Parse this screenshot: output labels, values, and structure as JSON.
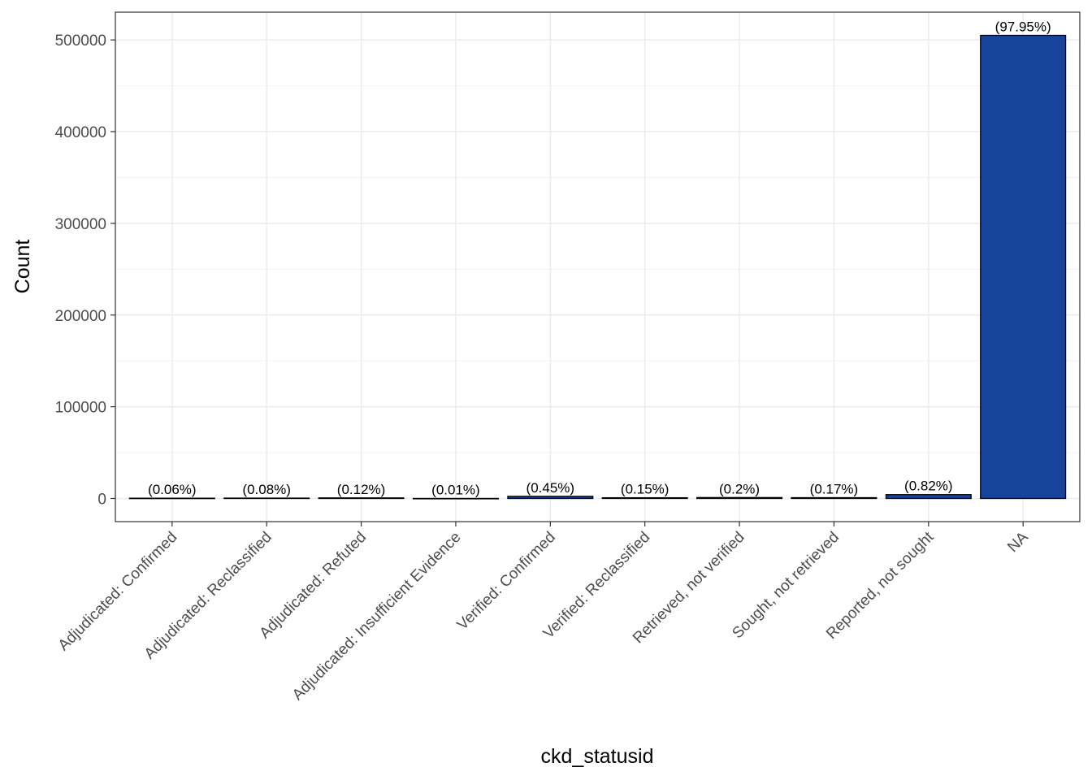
{
  "chart_data": {
    "type": "bar",
    "title": "",
    "xlabel": "ckd_statusid",
    "ylabel": "Count",
    "categories": [
      "Adjudicated: Confirmed",
      "Adjudicated: Reclassified",
      "Adjudicated: Refuted",
      "Adjudicated: Insufficient Evidence",
      "Verified: Confirmed",
      "Verified: Reclassified",
      "Retrieved, not verified",
      "Sought, not retrieved",
      "Reported, not sought",
      "NA"
    ],
    "values": [
      310,
      413,
      620,
      52,
      2325,
      775,
      1033,
      878,
      4237,
      505000
    ],
    "labels": [
      "(0.06%)",
      "(0.08%)",
      "(0.12%)",
      "(0.01%)",
      "(0.45%)",
      "(0.15%)",
      "(0.2%)",
      "(0.17%)",
      "(0.82%)",
      "(97.95%)"
    ],
    "yticks": [
      0,
      100000,
      200000,
      300000,
      400000,
      500000
    ],
    "ytick_labels": [
      "0",
      "100000",
      "200000",
      "300000",
      "400000",
      "500000"
    ],
    "ylim": [
      -25250,
      530250
    ],
    "grid": true,
    "legend": "none",
    "bar_color": "#18439a",
    "bar_outline": "#000000"
  }
}
